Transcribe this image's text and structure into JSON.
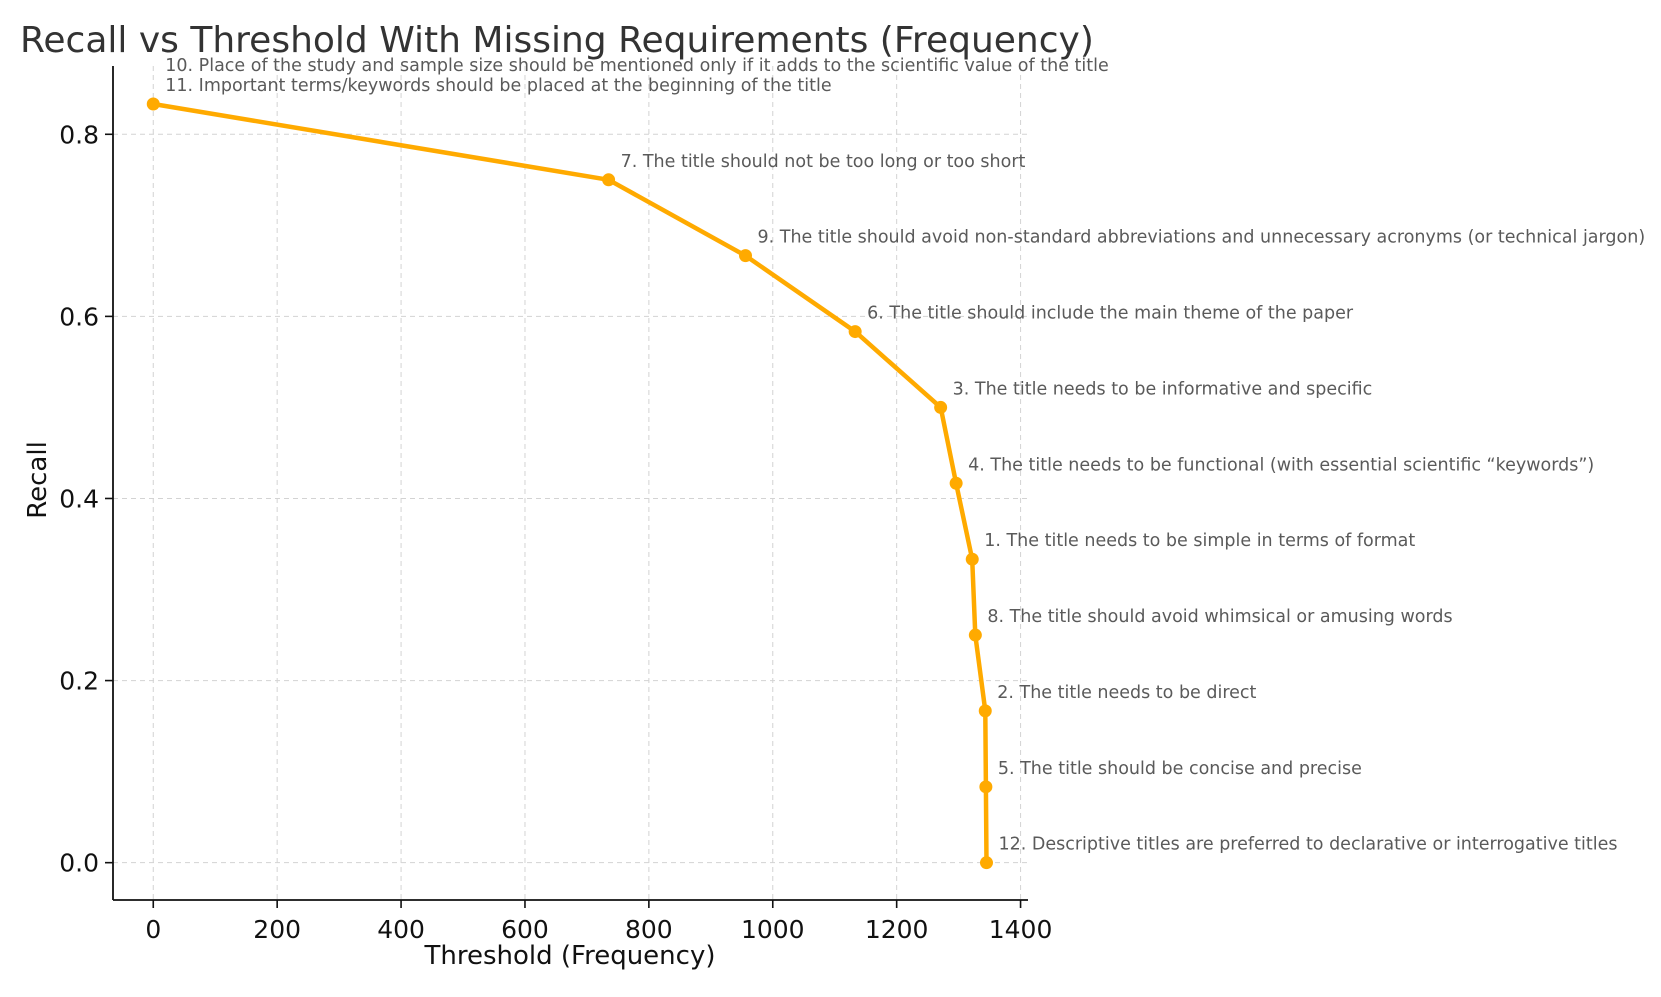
{
  "chart_data": {
    "type": "line",
    "title": "Recall vs Threshold With Missing Requirements (Frequency)",
    "xlabel": "Threshold (Frequency)",
    "ylabel": "Recall",
    "xlim": [
      -65,
      1412
    ],
    "ylim": [
      -0.041,
      0.875
    ],
    "xticks": [
      0,
      200,
      400,
      600,
      800,
      1000,
      1200,
      1400
    ],
    "xtick_labels": [
      "0",
      "200",
      "400",
      "600",
      "800",
      "1000",
      "1200",
      "1400"
    ],
    "yticks": [
      0.0,
      0.2,
      0.4,
      0.6,
      0.8
    ],
    "ytick_labels": [
      "0.0",
      "0.2",
      "0.4",
      "0.6",
      "0.8"
    ],
    "grid": true,
    "line_color": "#FFAA00",
    "series": [
      {
        "x": [
          0,
          735,
          956,
          1133,
          1271,
          1296,
          1322,
          1327,
          1343,
          1344,
          1345
        ],
        "y": [
          0.8333,
          0.75,
          0.6667,
          0.5833,
          0.5,
          0.4167,
          0.3333,
          0.25,
          0.1667,
          0.0833,
          0.0
        ]
      }
    ],
    "annotations": [
      {
        "point": 0,
        "lines": [
          "10. Place of the study and sample size should be mentioned only if it adds to the scientific value of the title",
          "11. Important terms/keywords should be placed at the beginning of the title"
        ]
      },
      {
        "point": 1,
        "lines": [
          "7. The title should not be too long or too short"
        ]
      },
      {
        "point": 2,
        "lines": [
          "9. The title should avoid non-standard abbreviations and unnecessary acronyms (or technical jargon)"
        ]
      },
      {
        "point": 3,
        "lines": [
          "6. The title should include the main theme of the paper"
        ]
      },
      {
        "point": 4,
        "lines": [
          "3. The title needs to be informative and specific"
        ]
      },
      {
        "point": 5,
        "lines": [
          "4. The title needs to be functional (with essential scientific “keywords”)"
        ]
      },
      {
        "point": 6,
        "lines": [
          "1. The title needs to be simple in terms of format"
        ]
      },
      {
        "point": 7,
        "lines": [
          "8. The title should avoid whimsical or amusing words"
        ]
      },
      {
        "point": 8,
        "lines": [
          "2. The title needs to be direct"
        ]
      },
      {
        "point": 9,
        "lines": [
          "5. The title should be concise and precise"
        ]
      },
      {
        "point": 10,
        "lines": [
          "12. Descriptive titles are preferred to declarative or interrogative titles"
        ]
      }
    ]
  }
}
